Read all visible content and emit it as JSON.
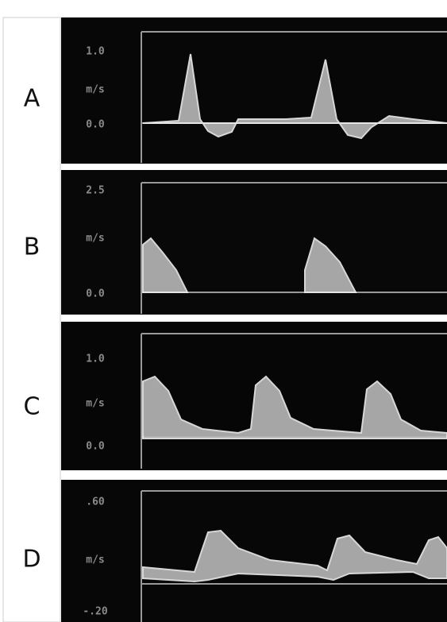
{
  "panels": [
    {
      "label": "A",
      "axis_labels": [
        "1.0",
        "m/s",
        "0.0"
      ]
    },
    {
      "label": "B",
      "axis_labels": [
        "2.5",
        "m/s",
        "0.0"
      ]
    },
    {
      "label": "C",
      "axis_labels": [
        "1.0",
        "m/s",
        "0.0"
      ]
    },
    {
      "label": "D",
      "axis_labels": [
        ".60",
        "m/s",
        "-.20"
      ]
    }
  ]
}
